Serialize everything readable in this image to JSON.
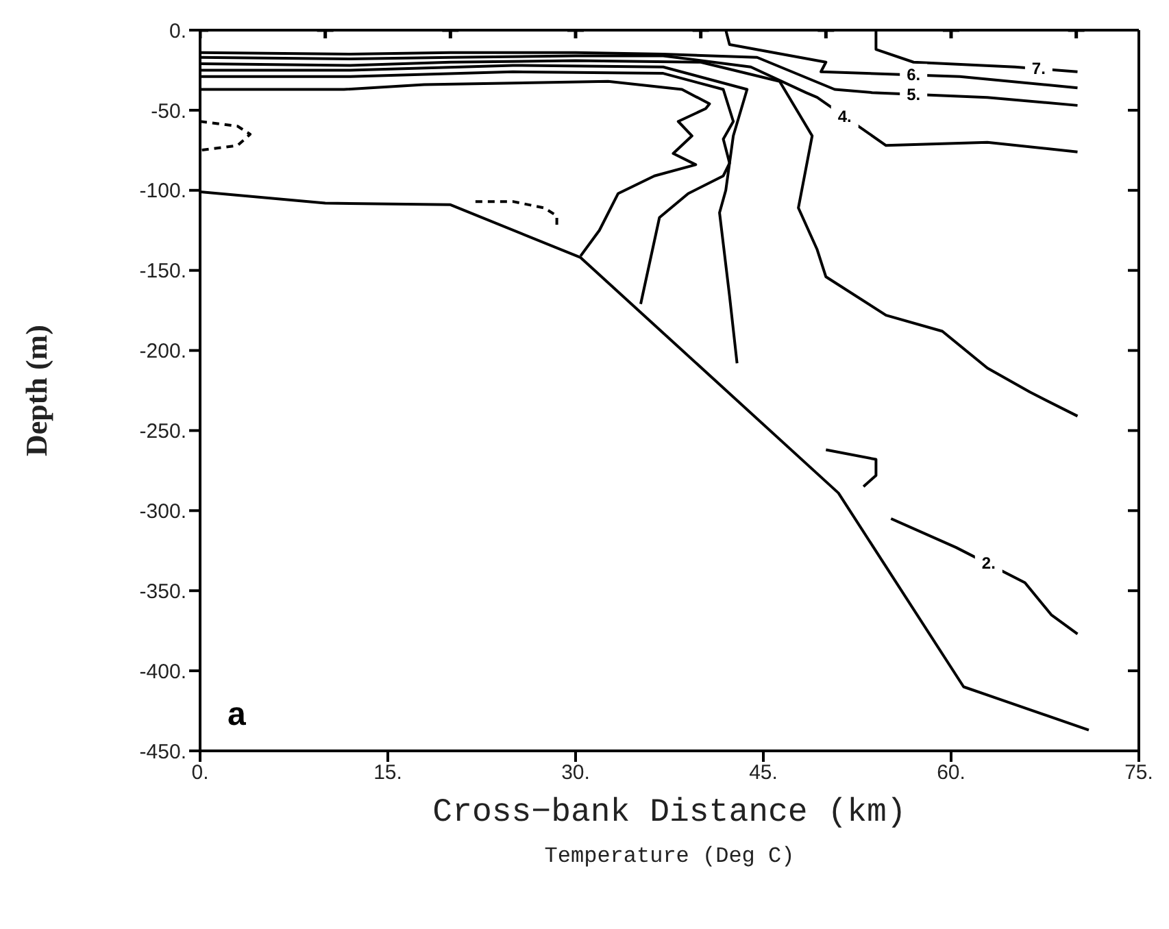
{
  "chart_data": {
    "type": "line",
    "xlabel": "Cross−bank Distance (km)",
    "ylabel": "Depth (m)",
    "xlim": [
      0,
      75
    ],
    "xticks": [
      {
        "value": 0,
        "label": "0."
      },
      {
        "value": 15,
        "label": "15."
      },
      {
        "value": 30,
        "label": "30."
      },
      {
        "value": 45,
        "label": "45."
      },
      {
        "value": 60,
        "label": "60."
      },
      {
        "value": 75,
        "label": "75."
      }
    ],
    "ylim": [
      -450,
      0
    ],
    "yticks": [
      {
        "value": -450,
        "label": "-450."
      },
      {
        "value": -400,
        "label": "-400."
      },
      {
        "value": -350,
        "label": "-350."
      },
      {
        "value": -300,
        "label": "-300."
      },
      {
        "value": -250,
        "label": "-250."
      },
      {
        "value": -200,
        "label": "-200."
      },
      {
        "value": -150,
        "label": "-150."
      },
      {
        "value": -100,
        "label": "-100."
      },
      {
        "value": -50,
        "label": "-50."
      },
      {
        "value": 0,
        "label": "0."
      }
    ],
    "marker": "none",
    "line_style": "solid",
    "series": [
      {
        "color": "#000000",
        "x": [
          0,
          10,
          20,
          30.4,
          51,
          61,
          71
        ],
        "values": [
          -101,
          -108,
          -109,
          -142,
          -289,
          -410,
          -437
        ]
      },
      {
        "color": "#000000",
        "x": [
          30.4,
          31.9,
          33.4,
          36.3,
          39.6,
          37.8,
          39.3,
          38.2,
          40.4,
          40.7,
          38.5,
          32.6,
          17.9,
          11.5,
          0
        ],
        "values": [
          -141,
          -125,
          -102,
          -91,
          -84,
          -77,
          -66,
          -57,
          -49,
          -46,
          -37,
          -32,
          -34,
          -37,
          -37
        ]
      },
      {
        "color": "#000000",
        "x": [
          35.2,
          36.7,
          39,
          41.8,
          42.3,
          41.8,
          42.6,
          41.8,
          37,
          25,
          12,
          0
        ],
        "values": [
          -171,
          -117,
          -102,
          -91,
          -83,
          -68,
          -57,
          -37,
          -27,
          -26,
          -29,
          -29
        ]
      },
      {
        "color": "#000000",
        "x": [
          42.9,
          42.3,
          41.5,
          42,
          42.6,
          43.7,
          37,
          25,
          12,
          0
        ],
        "values": [
          -208,
          -166,
          -114,
          -100,
          -66,
          -37,
          -23,
          -22,
          -25,
          -25
        ]
      },
      {
        "color": "#000000",
        "x": [
          70.1,
          66.3,
          62.9,
          59.3,
          54.8,
          50,
          49.3,
          47.8,
          48.9,
          46.3,
          40,
          30,
          20,
          12,
          0
        ],
        "values": [
          -241,
          -226,
          -211,
          -188,
          -178,
          -154,
          -137,
          -111,
          -66,
          -32,
          -20,
          -19,
          -20,
          -22,
          -21
        ]
      },
      {
        "color": "#000000",
        "x": [
          70.1,
          62.9,
          54.8,
          49.3,
          48.4,
          44,
          37,
          30,
          20,
          12,
          0
        ],
        "values": [
          -76,
          -70,
          -72,
          -42,
          -39,
          -23,
          -16,
          -16,
          -17,
          -18,
          -17
        ]
      },
      {
        "color": "#000000",
        "x": [
          70.1,
          62.9,
          53.7,
          50.7,
          44.5,
          37,
          30,
          20,
          12,
          0
        ],
        "values": [
          -47,
          -42,
          -39,
          -37,
          -17,
          -15,
          -14,
          -14,
          -15,
          -14
        ]
      },
      {
        "color": "#000000",
        "x": [
          70.1,
          60.7,
          49.6,
          50,
          42.3,
          42
        ],
        "values": [
          -36,
          -29,
          -26,
          -20,
          -9,
          0
        ]
      },
      {
        "color": "#000000",
        "x": [
          70.1,
          65.1,
          57,
          54,
          54
        ],
        "values": [
          -26,
          -23,
          -20,
          -12,
          0
        ]
      },
      {
        "color": "#000000",
        "line_style": "dashed",
        "x": [
          0,
          3,
          4,
          3,
          0
        ],
        "values": [
          -57,
          -60,
          -65,
          -72,
          -75
        ]
      },
      {
        "color": "#000000",
        "line_style": "dashed",
        "x": [
          22,
          25,
          27.5,
          28.5,
          28.5
        ],
        "values": [
          -107,
          -107,
          -111,
          -116,
          -122
        ]
      },
      {
        "color": "#000000",
        "x": [
          50,
          54,
          54,
          53
        ],
        "values": [
          -262,
          -268,
          -278,
          -285
        ]
      },
      {
        "color": "#000000",
        "x": [
          55.2,
          60.4,
          65.9,
          68,
          70.1
        ],
        "values": [
          -305,
          -323,
          -345,
          -365,
          -377
        ]
      },
      {
        "type": "scatter",
        "color": "#000000",
        "marker": "cross",
        "x": [
          0,
          10,
          20,
          30,
          40,
          50,
          60,
          70
        ],
        "values": [
          0,
          0,
          0,
          0,
          0,
          0,
          0,
          0
        ]
      }
    ],
    "annotations": [
      "a",
      "Temperature (Deg C)",
      {
        "text": "7.",
        "x": 67,
        "y": -24
      },
      {
        "text": "6.",
        "x": 57,
        "y": -28
      },
      {
        "text": "5.",
        "x": 57,
        "y": -40
      },
      {
        "text": "4.",
        "x": 51.5,
        "y": -54
      },
      {
        "text": "2.",
        "x": 63,
        "y": -333
      }
    ]
  }
}
